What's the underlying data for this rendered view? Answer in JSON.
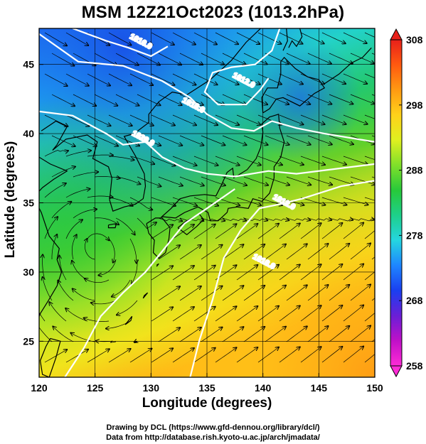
{
  "title": "MSM 12Z21Oct2023 (1013.2hPa)",
  "axes": {
    "x": {
      "label": "Longitude (degrees)",
      "range": [
        120,
        150
      ],
      "ticks": [
        120,
        125,
        130,
        135,
        140,
        145,
        150
      ]
    },
    "y": {
      "label": "Latitude  (degrees)",
      "range": [
        22.4,
        47.6
      ],
      "ticks": [
        25,
        30,
        35,
        40,
        45
      ]
    }
  },
  "colorbar": {
    "range": [
      258,
      308
    ],
    "labels": [
      258,
      268,
      278,
      288,
      298,
      308
    ],
    "colors": [
      "#ff2bd6",
      "#c010c8",
      "#6a1fd6",
      "#1a3ff0",
      "#1e86ff",
      "#25d6e0",
      "#1ed08a",
      "#27c93a",
      "#7fe02a",
      "#dff020",
      "#ffd21a",
      "#ff9a12",
      "#ff5a10",
      "#e8201a"
    ]
  },
  "isobars": [
    {
      "label": "1012.0"
    },
    {
      "label": "1016.0"
    },
    {
      "label": "1020.0"
    },
    {
      "label": "1016.0"
    },
    {
      "label": "1012.0"
    },
    {
      "label": "1016.0"
    }
  ],
  "credits": {
    "line1": "Drawing by DCL (https://www.gfd-dennou.org/library/dcl/)",
    "line2": "Data from http://database.rish.kyoto-u.ac.jp/arch/jmadata/"
  }
}
